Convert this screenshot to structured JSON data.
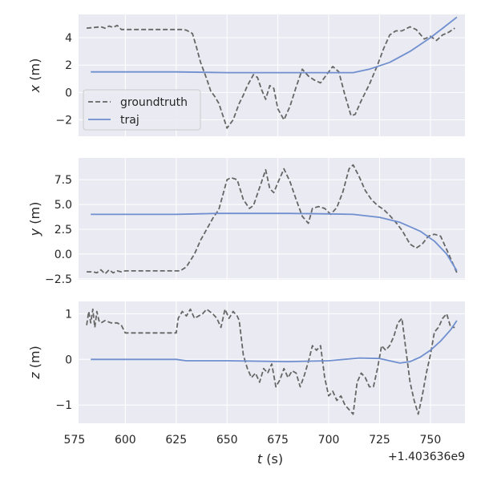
{
  "chart_data": {
    "type": "line",
    "xlabel": "t (s)",
    "x_offset_label": "+1.403636e9",
    "xlim": [
      577,
      767
    ],
    "xticks": [
      575,
      600,
      625,
      650,
      675,
      700,
      725,
      750
    ],
    "legend": {
      "placement": "center-left",
      "panel": 0
    },
    "colors": {
      "groundtruth": "#666666",
      "traj": "#6f8fcf"
    },
    "panels": [
      {
        "ylabel": "x (m)",
        "ylim": [
          -3.2,
          5.7
        ],
        "yticks": [
          -2,
          0,
          2,
          4
        ],
        "series": [
          {
            "name": "groundtruth",
            "style": "dashed",
            "x": [
              581,
              585,
              588,
              590,
              592,
              594,
              596,
              598,
              600,
              610,
              620,
              625,
              628,
              630,
              633,
              635,
              637,
              640,
              642,
              644,
              646,
              648,
              650,
              653,
              656,
              658,
              660,
              663,
              665,
              667,
              669,
              671,
              673,
              675,
              678,
              681,
              684,
              687,
              690,
              693,
              696,
              699,
              702,
              705,
              708,
              711,
              713,
              716,
              720,
              724,
              727,
              730,
              733,
              736,
              740,
              743,
              747,
              750,
              753,
              756,
              759,
              762
            ],
            "y": [
              4.7,
              4.75,
              4.8,
              4.7,
              4.85,
              4.75,
              4.9,
              4.6,
              4.6,
              4.6,
              4.6,
              4.6,
              4.6,
              4.55,
              4.3,
              3.3,
              2.2,
              1.0,
              0.1,
              -0.3,
              -0.8,
              -1.7,
              -2.6,
              -2.0,
              -0.8,
              -0.2,
              0.5,
              1.3,
              1.1,
              0.2,
              -0.5,
              0.5,
              0.3,
              -1.2,
              -2.0,
              -1.0,
              0.4,
              1.7,
              1.2,
              0.9,
              0.7,
              1.3,
              1.9,
              1.5,
              -0.2,
              -1.7,
              -1.6,
              -0.6,
              0.6,
              2.0,
              3.2,
              4.2,
              4.5,
              4.5,
              4.8,
              4.6,
              3.9,
              4.1,
              3.8,
              4.2,
              4.4,
              4.7
            ]
          },
          {
            "name": "traj",
            "style": "solid",
            "x": [
              583,
              600,
              625,
              650,
              675,
              700,
              712,
              720,
              730,
              740,
              750,
              757,
              763
            ],
            "y": [
              1.5,
              1.5,
              1.5,
              1.45,
              1.45,
              1.45,
              1.45,
              1.7,
              2.2,
              3.0,
              4.0,
              4.8,
              5.5
            ]
          }
        ]
      },
      {
        "ylabel": "y (m)",
        "ylim": [
          -2.6,
          9.7
        ],
        "yticks": [
          -2.5,
          0.0,
          2.5,
          5.0,
          7.5
        ],
        "series": [
          {
            "name": "groundtruth",
            "style": "dashed",
            "x": [
              581,
              584,
              586,
              588,
              590,
              592,
              594,
              596,
              598,
              600,
              612,
              627,
              630,
              634,
              637,
              640,
              643,
              646,
              648,
              650,
              652,
              655,
              658,
              661,
              663,
              666,
              669,
              671,
              673,
              675,
              678,
              681,
              684,
              687,
              690,
              692,
              695,
              698,
              701,
              704,
              707,
              710,
              712,
              715,
              718,
              721,
              724,
              727,
              730,
              733,
              736,
              740,
              743,
              746,
              749,
              752,
              755,
              759,
              763
            ],
            "y": [
              -1.8,
              -1.8,
              -1.9,
              -1.6,
              -2.0,
              -1.6,
              -1.9,
              -1.7,
              -1.8,
              -1.7,
              -1.7,
              -1.7,
              -1.3,
              0.0,
              1.4,
              2.5,
              3.6,
              4.5,
              6.0,
              7.5,
              7.7,
              7.5,
              5.5,
              4.6,
              4.9,
              6.7,
              8.5,
              6.6,
              6.2,
              7.2,
              8.6,
              7.3,
              5.5,
              3.8,
              3.1,
              4.6,
              4.8,
              4.6,
              4.0,
              4.7,
              6.3,
              8.6,
              9.0,
              7.8,
              6.4,
              5.5,
              4.9,
              4.5,
              3.9,
              3.2,
              2.4,
              1.0,
              0.6,
              1.0,
              1.8,
              2.0,
              1.8,
              0.0,
              -1.9
            ]
          },
          {
            "name": "traj",
            "style": "solid",
            "x": [
              583,
              600,
              625,
              645,
              660,
              680,
              700,
              712,
              725,
              735,
              745,
              752,
              758,
              763
            ],
            "y": [
              4.0,
              4.0,
              4.0,
              4.1,
              4.1,
              4.1,
              4.05,
              4.0,
              3.7,
              3.2,
              2.3,
              1.3,
              0.0,
              -1.7
            ]
          }
        ]
      },
      {
        "ylabel": "z (m)",
        "ylim": [
          -1.4,
          1.27
        ],
        "yticks": [
          -1,
          0,
          1
        ],
        "series": [
          {
            "name": "groundtruth",
            "style": "dashed",
            "x": [
              581,
              582,
              583,
              584,
              585,
              586,
              587,
              588,
              590,
              593,
              596,
              598,
              600,
              612,
              625,
              626,
              628,
              630,
              632,
              634,
              636,
              638,
              640,
              643,
              645,
              647,
              649,
              651,
              653,
              655,
              656,
              658,
              660,
              662,
              664,
              666,
              668,
              670,
              672,
              674,
              676,
              678,
              680,
              682,
              684,
              686,
              688,
              690,
              692,
              694,
              696,
              698,
              700,
              702,
              704,
              706,
              708,
              710,
              712,
              714,
              716,
              718,
              720,
              722,
              724,
              726,
              728,
              730,
              732,
              734,
              736,
              738,
              740,
              742,
              744,
              746,
              748,
              750,
              752,
              754,
              756,
              758,
              760,
              762
            ],
            "y": [
              0.75,
              1.05,
              0.8,
              1.1,
              0.7,
              1.05,
              0.85,
              0.8,
              0.85,
              0.8,
              0.8,
              0.75,
              0.58,
              0.58,
              0.58,
              0.9,
              1.05,
              0.95,
              1.1,
              0.9,
              0.95,
              1.0,
              1.1,
              1.0,
              0.9,
              0.7,
              1.1,
              0.9,
              1.05,
              0.95,
              0.85,
              0.1,
              -0.2,
              -0.4,
              -0.3,
              -0.5,
              -0.2,
              -0.3,
              -0.1,
              -0.6,
              -0.45,
              -0.2,
              -0.4,
              -0.25,
              -0.3,
              -0.6,
              -0.35,
              -0.05,
              0.3,
              0.2,
              0.3,
              -0.4,
              -0.8,
              -0.7,
              -0.9,
              -0.8,
              -1.0,
              -1.1,
              -1.2,
              -0.5,
              -0.3,
              -0.4,
              -0.6,
              -0.6,
              -0.2,
              0.3,
              0.2,
              0.3,
              0.5,
              0.8,
              0.9,
              0.2,
              -0.5,
              -0.9,
              -1.2,
              -0.8,
              -0.3,
              0.1,
              0.6,
              0.7,
              0.9,
              1.0,
              0.7,
              0.7
            ]
          },
          {
            "name": "traj",
            "style": "solid",
            "x": [
              583,
              600,
              625,
              630,
              650,
              680,
              700,
              715,
              725,
              735,
              740,
              745,
              750,
              755,
              760,
              763
            ],
            "y": [
              0.0,
              0.0,
              0.0,
              -0.03,
              -0.03,
              -0.05,
              -0.03,
              0.03,
              0.02,
              -0.08,
              -0.05,
              0.05,
              0.2,
              0.4,
              0.65,
              0.85
            ]
          }
        ]
      }
    ]
  }
}
